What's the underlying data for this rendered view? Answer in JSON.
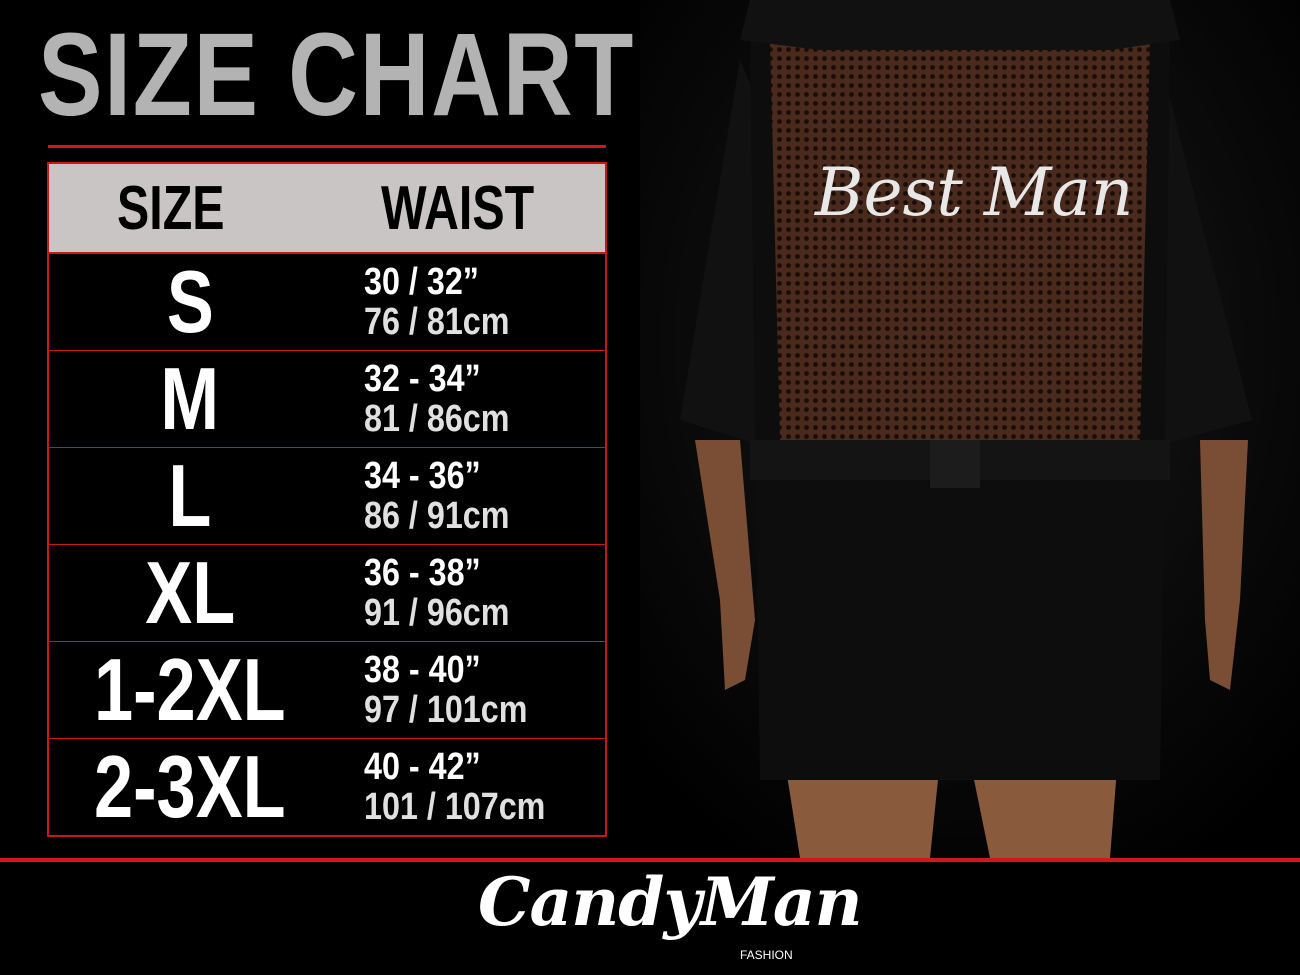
{
  "title": "SIZE CHART",
  "table": {
    "headers": {
      "size": "SIZE",
      "waist": "WAIST"
    },
    "rows": [
      {
        "size": "S",
        "inches": "30 / 32”",
        "cm": "76 / 81cm"
      },
      {
        "size": "M",
        "inches": "32 - 34”",
        "cm": "81 / 86cm"
      },
      {
        "size": "L",
        "inches": "34 - 36”",
        "cm": "86 / 91cm"
      },
      {
        "size": "XL",
        "inches": "36 - 38”",
        "cm": "91 / 96cm"
      },
      {
        "size": "1-2XL",
        "inches": "38 - 40”",
        "cm": "97 / 101cm"
      },
      {
        "size": "2-3XL",
        "inches": "40 - 42”",
        "cm": "101 / 107cm"
      }
    ]
  },
  "product_print": "Best Man",
  "logo": {
    "brand": "CandyMan",
    "sub": "FASHION"
  },
  "colors": {
    "background": "#000000",
    "accent": "#d2161b",
    "header_bg": "#c9c5c4",
    "title": "#b3b3b3"
  }
}
